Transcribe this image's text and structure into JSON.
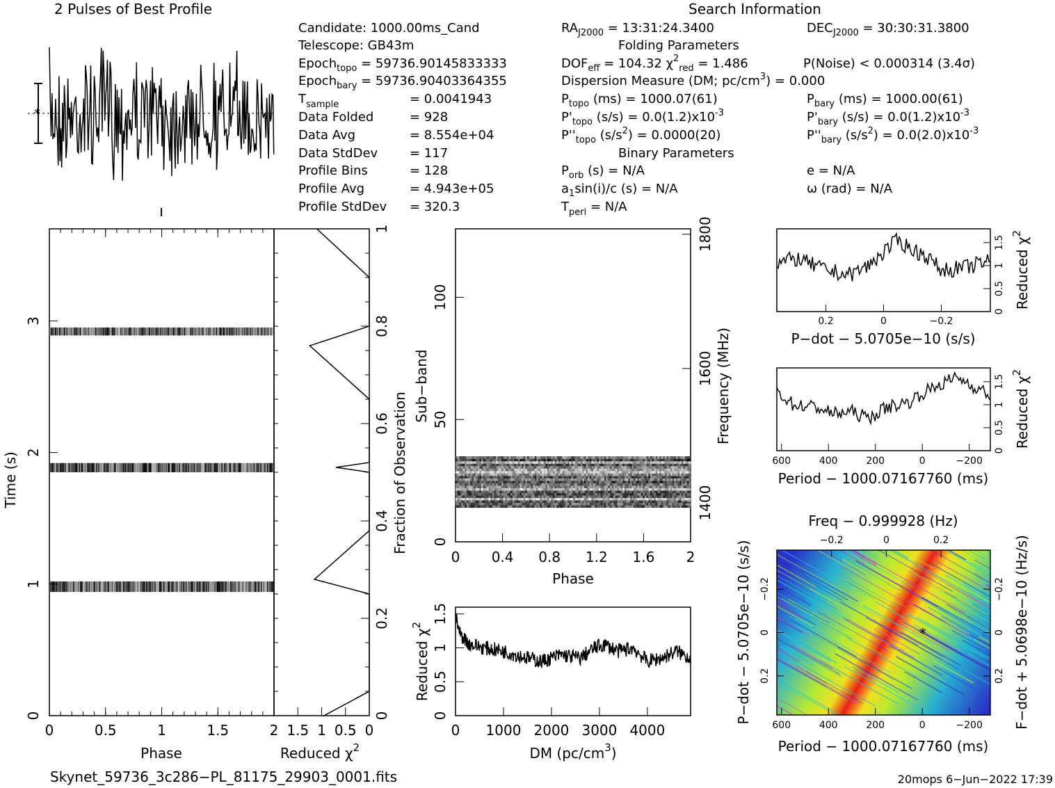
{
  "header": {
    "profile_title": "2 Pulses of Best Profile",
    "search_title": "Search Information",
    "folding_title": "Folding Parameters",
    "binary_title": "Binary Parameters"
  },
  "info": {
    "candidate": "Candidate:  1000.00ms_Cand",
    "telescope": "Telescope:  GB43m",
    "epoch_topo_a": "Epoch",
    "epoch_topo_b": "topo",
    "epoch_topo_c": " = 59736.90145833333",
    "epoch_bary_a": "Epoch",
    "epoch_bary_b": "bary",
    "epoch_bary_c": " = 59736.90403364355",
    "tsample_a": "T",
    "tsample_b": "sample",
    "tsample_c": "=  0.0041943",
    "data_folded_a": "Data Folded",
    "data_folded_c": "=  928",
    "data_avg_a": "Data Avg",
    "data_avg_c": "=  8.554e+04",
    "data_std_a": "Data StdDev",
    "data_std_c": "=  117",
    "prof_bins_a": "Profile Bins",
    "prof_bins_c": "=  128",
    "prof_avg_a": "Profile Avg",
    "prof_avg_c": "=  4.943e+05",
    "prof_std_a": "Profile StdDev",
    "prof_std_c": "=  320.3"
  },
  "search": {
    "ra_a": "RA",
    "ra_b": "J2000",
    "ra_c": " = 13:31:24.3400",
    "dec_a": "DEC",
    "dec_b": "J2000",
    "dec_c": " = 30:30:31.3800",
    "dof_a": "DOF",
    "dof_b": "eff",
    "dof_c": " = 104.32  χ",
    "dof_d": "2",
    "dof_e": "red",
    "dof_f": " = 1.486",
    "pnoise": "P(Noise) < 0.000314   (3.4σ)",
    "dm_a": "Dispersion Measure (DM; pc/cm",
    "dm_b": "3",
    "dm_c": ") = 0.000",
    "ptopo_a": "P",
    "ptopo_b": "topo",
    "ptopo_c": " (ms) =  1000.07(61)",
    "pbary_a": "P",
    "pbary_b": "bary",
    "pbary_c": " (ms) =  1000.00(61)",
    "pdtopo_a": "P'",
    "pdtopo_b": "topo",
    "pdtopo_c": " (s/s) = 0.0(1.2)x10",
    "pdtopo_d": "-3",
    "pdbary_a": "P'",
    "pdbary_b": "bary",
    "pdbary_c": " (s/s) = 0.0(1.2)x10",
    "pdbary_d": "-3",
    "pddtopo_a": "P''",
    "pddtopo_b": "topo",
    "pddtopo_c": " (s/s",
    "pddtopo_d": "2",
    "pddtopo_e": ") =  0.0000(20)",
    "pddbary_a": "P''",
    "pddbary_b": "bary",
    "pddbary_c": " (s/s",
    "pddbary_d": "2",
    "pddbary_e": ") = 0.0(2.0)x10",
    "pddbary_f": "-3",
    "porb_a": "P",
    "porb_b": "orb",
    "porb_c": " (s) = N/A",
    "ecc": "e = N/A",
    "a1_a": "a",
    "a1_b": "1",
    "a1_c": "sin(i)/c (s) = N/A",
    "omega": "ω (rad) = N/A",
    "tperi_a": "T",
    "tperi_b": "peri",
    "tperi_c": " = N/A"
  },
  "footer": {
    "filename": "Skynet_59736_3c286−PL_81175_29903_0001.fits",
    "stamp": "20mops   6−Jun−2022 17:39"
  },
  "colors": {
    "ink": "#000000",
    "heat_low": "#2a30c8",
    "heat_mid": "#1fd0d8",
    "heat_high": "#c8f01e",
    "heat_peak": "#e8201a"
  },
  "chart_data": [
    {
      "id": "profile",
      "type": "line",
      "title": "2 Pulses of Best Profile",
      "xlim": [
        0,
        2
      ],
      "nbins": 256,
      "note_values": "noise-like profile, no visible pulse"
    },
    {
      "id": "time_phase",
      "type": "heatmap",
      "xlabel": "Phase",
      "ylabel": "Time (s)",
      "xlim": [
        0,
        2
      ],
      "ylim": [
        0,
        3.7
      ],
      "x_ticks": [
        "0",
        "0.5",
        "1",
        "1.5"
      ],
      "y_ticks": [
        "0",
        "1",
        "2",
        "3"
      ],
      "bands_s": [
        [
          0.94,
          1.02
        ],
        [
          1.85,
          1.92
        ],
        [
          2.89,
          2.95
        ]
      ]
    },
    {
      "id": "reduced_chi2_vs_time",
      "type": "line",
      "xlabel": "Reduced χ",
      "xlabel_sup": "2",
      "ylabel": "Fraction of Observation",
      "xlim": [
        2,
        0
      ],
      "ylim": [
        0,
        1
      ],
      "x_ticks": [
        "2",
        "1.5",
        "1",
        "0.5",
        "0"
      ],
      "y_ticks": [
        "0.2",
        "0.4",
        "0.6",
        "0.8",
        "1"
      ],
      "x": [
        0.95,
        0.0,
        0.0,
        1.15,
        0.0,
        0.0,
        0.7,
        0.0,
        0.0,
        1.25,
        0.0,
        0.0,
        1.1
      ],
      "y": [
        0.0,
        0.05,
        0.25,
        0.28,
        0.38,
        0.5,
        0.51,
        0.52,
        0.65,
        0.76,
        0.8,
        0.9,
        1.0
      ],
      "note": "piecewise chi2 values estimated"
    },
    {
      "id": "subband_phase",
      "type": "heatmap",
      "xlabel": "Phase",
      "ylabel": "Sub−band",
      "ylabel_right": "Frequency (MHz)",
      "xlim": [
        0,
        2
      ],
      "ylim": [
        0,
        128
      ],
      "x_ticks": [
        "0",
        "0.4",
        "0.8",
        "1.2",
        "1.6",
        "2"
      ],
      "y_ticks": [
        "0",
        "50",
        "100"
      ],
      "freq_ticks": [
        "1400",
        "1600",
        "1800"
      ],
      "active_subbands": [
        14,
        35
      ]
    },
    {
      "id": "dm_curve",
      "type": "line",
      "xlabel": "DM (pc/cm",
      "xlabel_sup": "3",
      "xlabel_end": ")",
      "ylabel": "Reduced χ",
      "ylabel_sup": "2",
      "xlim": [
        0,
        4900
      ],
      "ylim": [
        0,
        1.6
      ],
      "x_ticks": [
        "0",
        "1000",
        "2000",
        "3000",
        "4000"
      ],
      "y_ticks": [
        "0",
        "0.5",
        "1",
        "1.5"
      ],
      "x": [
        0,
        100,
        300,
        600,
        1000,
        1500,
        1800,
        2200,
        2600,
        2900,
        3100,
        3400,
        3700,
        4000,
        4300,
        4600,
        4900
      ],
      "y": [
        1.45,
        1.2,
        1.05,
        1.0,
        0.95,
        0.85,
        0.8,
        0.9,
        0.85,
        1.0,
        1.05,
        0.95,
        1.0,
        0.8,
        0.85,
        0.95,
        0.85
      ]
    },
    {
      "id": "pdot_curve",
      "type": "line",
      "xlabel": "P−dot − 5.0705e−10 (s/s)",
      "ylabel": "Reduced χ",
      "ylabel_sup": "2",
      "xlim": [
        0.37,
        -0.37
      ],
      "ylim": [
        0,
        1.8
      ],
      "x_ticks": [
        "0.2",
        "0",
        "−0.2"
      ],
      "y_ticks": [
        "0",
        "0.5",
        "1",
        "1.5"
      ],
      "x": [
        0.37,
        0.3,
        0.2,
        0.12,
        0.05,
        0.0,
        -0.05,
        -0.1,
        -0.15,
        -0.2,
        -0.28,
        -0.37
      ],
      "y": [
        1.05,
        1.15,
        0.9,
        0.8,
        1.0,
        1.3,
        1.55,
        1.35,
        1.2,
        0.9,
        0.95,
        1.1
      ]
    },
    {
      "id": "period_curve",
      "type": "line",
      "xlabel": "Period − 1000.07167760 (ms)",
      "ylabel": "Reduced χ",
      "ylabel_sup": "2",
      "xlim": [
        620,
        -290
      ],
      "ylim": [
        0,
        1.8
      ],
      "x_ticks": [
        "600",
        "400",
        "200",
        "0",
        "−200"
      ],
      "y_ticks": [
        "0",
        "0.5",
        "1",
        "1.5"
      ],
      "x": [
        620,
        550,
        450,
        380,
        300,
        230,
        150,
        60,
        0,
        -80,
        -150,
        -220,
        -290
      ],
      "y": [
        1.3,
        1.0,
        0.95,
        0.8,
        0.85,
        0.7,
        0.95,
        1.05,
        1.25,
        1.45,
        1.6,
        1.4,
        1.2
      ]
    },
    {
      "id": "period_pdot_map",
      "type": "heatmap",
      "xlabel": "Period − 1000.07167760 (ms)",
      "xlabel_top": "Freq − 0.999928 (Hz)",
      "ylabel": "P−dot − 5.0705e−10 (s/s)",
      "ylabel_right": "F−dot + 5.0698e−10 (Hz/s)",
      "xlim": [
        620,
        -290
      ],
      "ylim": [
        0.38,
        -0.38
      ],
      "x_ticks": [
        "600",
        "400",
        "200",
        "0",
        "−200"
      ],
      "x_top_ticks": [
        "−0.2",
        "0",
        "0.2"
      ],
      "y_ticks": [
        "−0.2",
        "0",
        "0.2"
      ],
      "y_right_ticks": [
        "0.2",
        "0",
        "−0.2"
      ],
      "best": [
        0,
        0
      ]
    }
  ]
}
